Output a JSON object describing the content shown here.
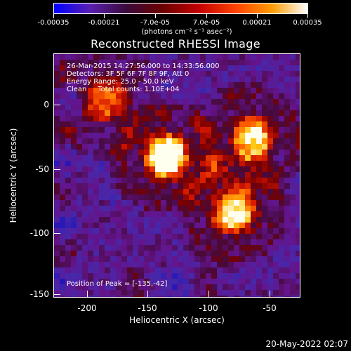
{
  "colorbar": {
    "ticks": [
      "-0.00035",
      "-0.00021",
      "-7.0e-05",
      "7.0e-05",
      "0.00021",
      "0.00035"
    ],
    "units": "(photons cm⁻² s⁻¹ asec⁻²)",
    "colors": [
      "#0000ff",
      "#5a1fb0",
      "#3a0a3a",
      "#6b0000",
      "#c40000",
      "#ff4000",
      "#ff9a00",
      "#ffffff"
    ]
  },
  "title": "Reconstructed RHESSI Image",
  "annotations": {
    "time": "26-Mar-2015 14:27:56.000 to 14:33:56.000",
    "detectors": "Detectors: 3F 5F 6F 7F 8F 9F, Att 0",
    "energy": "Energy Range: 25.0 - 50.0 keV",
    "clean": "Clean     Total counts: 1.10E+04",
    "peak": "Position of Peak = [-135,-42]"
  },
  "axes": {
    "xlabel": "Heliocentric X (arcsec)",
    "ylabel": "Heliocentric Y (arcsec)",
    "xticks": [
      "-200",
      "-150",
      "-100",
      "-50"
    ],
    "yticks": [
      "0",
      "-50",
      "-100",
      "-150"
    ]
  },
  "footer": {
    "timestamp": "20-May-2022 02:07"
  },
  "map": {
    "colormap": "blue-purple-red-yellow-white",
    "sources": [
      {
        "x": -135,
        "y": -42,
        "intensity": 1.0
      },
      {
        "x": -65,
        "y": -28,
        "intensity": 0.8
      },
      {
        "x": -80,
        "y": -85,
        "intensity": 0.85
      },
      {
        "x": -185,
        "y": 3,
        "intensity": 0.6
      }
    ]
  }
}
